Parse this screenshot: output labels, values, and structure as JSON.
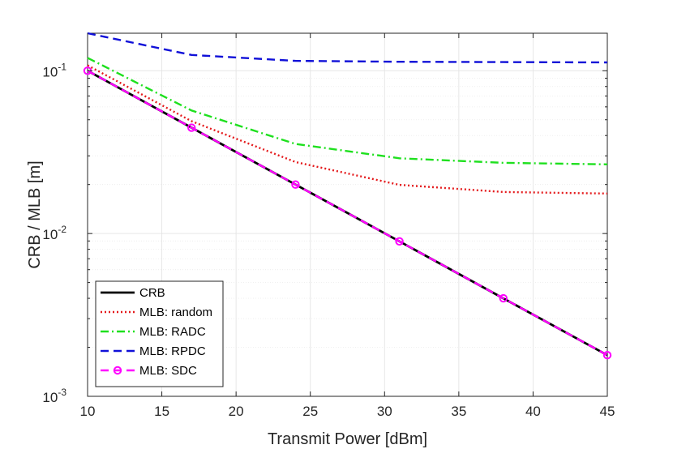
{
  "chart_data": {
    "type": "line",
    "title": "",
    "xlabel": "Transmit Power [dBm]",
    "ylabel": "CRB / MLB [m]",
    "xlim": [
      10,
      45
    ],
    "ylim": [
      0.001,
      0.17
    ],
    "yscale": "log",
    "grid": true,
    "legend_position": "bottom-left",
    "x_ticks": [
      10,
      15,
      20,
      25,
      30,
      35,
      40,
      45
    ],
    "y_ticks": [
      {
        "value": 0.001,
        "base": "10",
        "exp": "-3"
      },
      {
        "value": 0.01,
        "base": "10",
        "exp": "-2"
      },
      {
        "value": 0.1,
        "base": "10",
        "exp": "-1"
      }
    ],
    "x": [
      10,
      17,
      24,
      31,
      38,
      45
    ],
    "series": [
      {
        "name": "CRB",
        "color": "#000000",
        "style": "solid",
        "marker": "none",
        "values": [
          0.1,
          0.0447,
          0.02,
          0.00895,
          0.004,
          0.00179
        ]
      },
      {
        "name": "MLB: random",
        "color": "#e41a1c",
        "style": "dotted",
        "marker": "none",
        "values": [
          0.108,
          0.049,
          0.0275,
          0.0199,
          0.018,
          0.0176
        ]
      },
      {
        "name": "MLB: RADC",
        "color": "#1ee01e",
        "style": "dashdot",
        "marker": "none",
        "values": [
          0.12,
          0.057,
          0.0355,
          0.029,
          0.0272,
          0.0266
        ]
      },
      {
        "name": "MLB: RPDC",
        "color": "#1010d8",
        "style": "dashed",
        "marker": "none",
        "values": [
          0.17,
          0.125,
          0.115,
          0.1135,
          0.113,
          0.1125
        ]
      },
      {
        "name": "MLB: SDC",
        "color": "#ff00ff",
        "style": "dashed",
        "marker": "circle",
        "values": [
          0.1,
          0.0447,
          0.02,
          0.00895,
          0.004,
          0.00179
        ]
      }
    ]
  }
}
